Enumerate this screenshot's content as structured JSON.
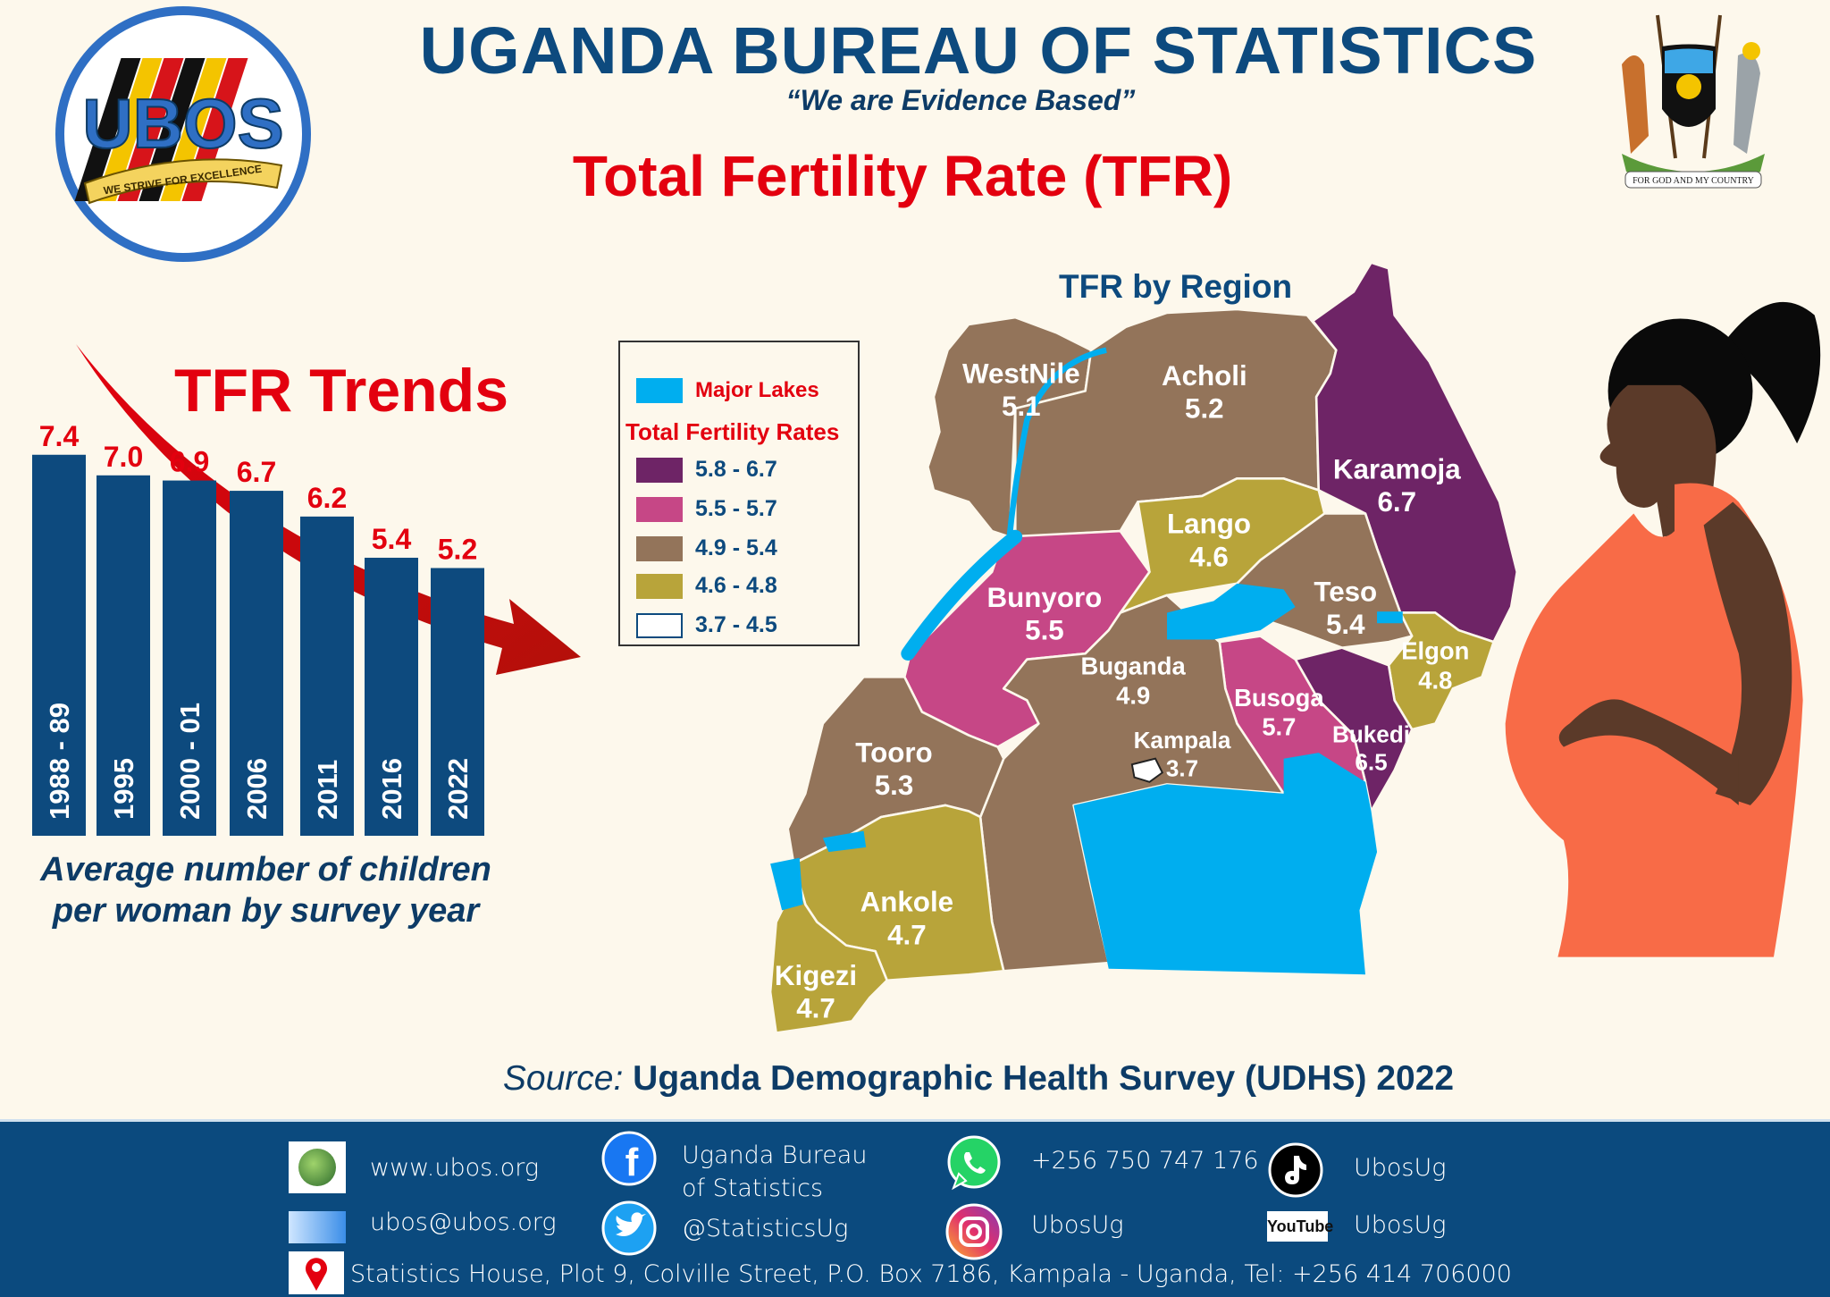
{
  "header": {
    "title": "UGANDA BUREAU OF STATISTICS",
    "tagline": "“We are Evidence Based”",
    "subject": "Total Fertility Rate (TFR)",
    "logo_text": "UBOS",
    "logo_motto": "WE STRIVE FOR EXCELLENCE",
    "coat_of_arms_motto": "FOR GOD AND MY COUNTRY"
  },
  "colors": {
    "navy": "#0d4a7e",
    "red": "#e3000f",
    "purple": "#6e2466",
    "pink": "#c64786",
    "brown": "#93745a",
    "olive": "#b8a43a",
    "lake": "#00aeef",
    "dress": "#f86b47"
  },
  "chart_data": {
    "type": "bar",
    "title": "TFR Trends",
    "caption": [
      "Average number of children",
      "per woman by survey year"
    ],
    "categories": [
      "1988 - 89",
      "1995",
      "2000 - 01",
      "2006",
      "2011",
      "2016",
      "2022"
    ],
    "values": [
      7.4,
      7.0,
      6.9,
      6.7,
      6.2,
      5.4,
      5.2
    ],
    "value_labels": [
      "7.4",
      "7.0",
      "6.9",
      "6.7",
      "6.2",
      "5.4",
      "5.2"
    ],
    "bar_color": "#0d4a7e",
    "label_color": "#e3000f",
    "ylim": [
      0,
      7.4
    ],
    "annotation": "downward-trend-arrow"
  },
  "map": {
    "title": "TFR by Region",
    "legend": {
      "lakes_label": "Major Lakes",
      "rates_title": "Total Fertility Rates",
      "classes": [
        {
          "range": "5.8 - 6.7",
          "color": "#6e2466"
        },
        {
          "range": "5.5 - 5.7",
          "color": "#c64786"
        },
        {
          "range": "4.9 - 5.4",
          "color": "#93745a"
        },
        {
          "range": "4.6 - 4.8",
          "color": "#b8a43a"
        },
        {
          "range": "3.7 - 4.5",
          "color": "#ffffff"
        }
      ]
    },
    "regions": [
      {
        "name": "WestNile",
        "tfr": "5.1"
      },
      {
        "name": "Acholi",
        "tfr": "5.2"
      },
      {
        "name": "Karamoja",
        "tfr": "6.7"
      },
      {
        "name": "Lango",
        "tfr": "4.6"
      },
      {
        "name": "Teso",
        "tfr": "5.4"
      },
      {
        "name": "Elgon",
        "tfr": "4.8"
      },
      {
        "name": "Bunyoro",
        "tfr": "5.5"
      },
      {
        "name": "Buganda",
        "tfr": "4.9"
      },
      {
        "name": "Busoga",
        "tfr": "5.7"
      },
      {
        "name": "Bukedi",
        "tfr": "6.5"
      },
      {
        "name": "Kampala",
        "tfr": "3.7"
      },
      {
        "name": "Tooro",
        "tfr": "5.3"
      },
      {
        "name": "Ankole",
        "tfr": "4.7"
      },
      {
        "name": "Kigezi",
        "tfr": "4.7"
      }
    ]
  },
  "source": {
    "prefix": "Source:",
    "text": "Uganda Demographic Health Survey (UDHS) 2022"
  },
  "footer": {
    "website": "www.ubos.org",
    "email": "ubos@ubos.org",
    "facebook_1": "Uganda Bureau",
    "facebook_2": "of Statistics",
    "twitter": "@StatisticsUg",
    "whatsapp": "+256 750 747 176",
    "instagram": "UbosUg",
    "tiktok": "UbosUg",
    "youtube": "UbosUg",
    "youtube_logo": "YouTube",
    "address": "Statistics House, Plot 9, Colville Street, P.O. Box 7186, Kampala - Uganda, Tel: +256 414 706000"
  }
}
